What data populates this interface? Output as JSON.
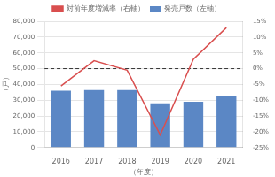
{
  "chart_data": {
    "type": "bar",
    "categories": [
      "2016",
      "2017",
      "2018",
      "2019",
      "2020",
      "2021"
    ],
    "series": [
      {
        "name": "発売戸数（左軸）",
        "type": "bar",
        "color": "#5b87c5",
        "values": [
          36000,
          36500,
          36500,
          28000,
          29000,
          32500
        ]
      },
      {
        "name": "対前年度増減率（右軸）",
        "type": "line",
        "color": "#d94f4f",
        "axis": "y2",
        "values": [
          -5.5,
          2.5,
          -0.5,
          -21,
          3,
          13
        ]
      }
    ],
    "x_label": "（年度）",
    "y_label": "（戸）",
    "ylim": [
      0,
      80000
    ],
    "yticks": [
      0,
      {
        "value": 10000,
        "label": "10,000"
      },
      {
        "value": 20000,
        "label": "20,000"
      },
      {
        "value": 30000,
        "label": "30,000"
      },
      {
        "value": 40000,
        "label": "40,000"
      },
      {
        "value": 50000,
        "label": "50,000"
      },
      {
        "value": 60000,
        "label": "60,000"
      },
      {
        "value": 70000,
        "label": "70,000"
      },
      {
        "value": 80000,
        "label": "80,000"
      }
    ],
    "y2lim": [
      -25,
      15
    ],
    "y2ticks": [
      {
        "value": -25,
        "label": "-25%"
      },
      {
        "value": -20,
        "label": "-20%"
      },
      {
        "value": -15,
        "label": "-15%"
      },
      {
        "value": -10,
        "label": "-10%"
      },
      {
        "value": -5,
        "label": "-5%"
      },
      {
        "value": 0,
        "label": "0%"
      },
      {
        "value": 5,
        "label": "5%"
      },
      {
        "value": 10,
        "label": "10%"
      },
      {
        "value": 15,
        "label": "15%"
      }
    ],
    "hlines": [
      {
        "value": 50000,
        "color": "#333333",
        "line_style": "dashed"
      }
    ],
    "grid": true,
    "legend": "top"
  }
}
